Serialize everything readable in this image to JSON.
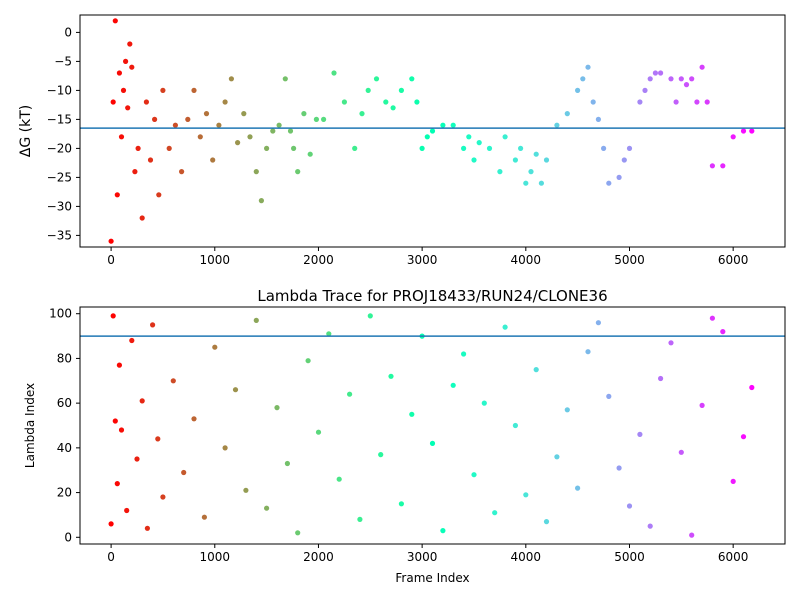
{
  "chart_data": [
    {
      "type": "scatter",
      "title": "",
      "xlabel": "",
      "ylabel": "ΔG (kT)",
      "xlim": [
        -300,
        6500
      ],
      "ylim": [
        -37,
        3
      ],
      "xticks": [
        0,
        1000,
        2000,
        3000,
        4000,
        5000,
        6000
      ],
      "yticks": [
        0,
        -5,
        -10,
        -15,
        -20,
        -25,
        -30,
        -35
      ],
      "hline": -16.5,
      "colormap": "rainbow (red at frame 0 to purple at last frame)",
      "frames": 6200,
      "series": [
        {
          "name": "",
          "x": [
            0,
            20,
            40,
            60,
            80,
            100,
            120,
            140,
            160,
            180,
            200,
            230,
            260,
            300,
            340,
            380,
            420,
            460,
            500,
            560,
            620,
            680,
            740,
            800,
            860,
            920,
            980,
            1040,
            1100,
            1160,
            1220,
            1280,
            1340,
            1400,
            1450,
            1500,
            1560,
            1620,
            1680,
            1730,
            1760,
            1800,
            1860,
            1920,
            1980,
            2050,
            2150,
            2250,
            2350,
            2420,
            2480,
            2560,
            2650,
            2720,
            2800,
            2900,
            2950,
            3000,
            3050,
            3100,
            3200,
            3300,
            3400,
            3450,
            3500,
            3550,
            3650,
            3750,
            3800,
            3900,
            3950,
            4000,
            4050,
            4100,
            4150,
            4200,
            4300,
            4400,
            4500,
            4550,
            4600,
            4650,
            4700,
            4750,
            4800,
            4900,
            4950,
            5000,
            5100,
            5150,
            5200,
            5250,
            5300,
            5400,
            5450,
            5500,
            5550,
            5600,
            5650,
            5700,
            5750,
            5800,
            5900,
            6000,
            6100,
            6180
          ],
          "y": [
            -36,
            -12,
            2,
            -28,
            -7,
            -18,
            -10,
            -5,
            -13,
            -2,
            -6,
            -24,
            -20,
            -32,
            -12,
            -22,
            -15,
            -28,
            -10,
            -20,
            -16,
            -24,
            -15,
            -10,
            -18,
            -14,
            -22,
            -16,
            -12,
            -8,
            -19,
            -14,
            -18,
            -24,
            -29,
            -20,
            -17,
            -16,
            -8,
            -17,
            -20,
            -24,
            -14,
            -21,
            -15,
            -15,
            -7,
            -12,
            -20,
            -14,
            -10,
            -8,
            -12,
            -13,
            -10,
            -8,
            -12,
            -20,
            -18,
            -17,
            -16,
            -16,
            -20,
            -18,
            -22,
            -19,
            -20,
            -24,
            -18,
            -22,
            -20,
            -26,
            -24,
            -21,
            -26,
            -22,
            -16,
            -14,
            -10,
            -8,
            -6,
            -12,
            -15,
            -20,
            -26,
            -25,
            -22,
            -20,
            -12,
            -10,
            -8,
            -7,
            -7,
            -8,
            -12,
            -8,
            -9,
            -8,
            -12,
            -6,
            -12,
            -23,
            -23,
            -18,
            -17,
            -17
          ]
        }
      ]
    },
    {
      "type": "scatter",
      "title": "Lambda Trace for PROJ18433/RUN24/CLONE36",
      "xlabel": "Frame Index",
      "ylabel": "Lambda Index",
      "xlim": [
        -300,
        6500
      ],
      "ylim": [
        -3,
        103
      ],
      "xticks": [
        0,
        1000,
        2000,
        3000,
        4000,
        5000,
        6000
      ],
      "yticks": [
        0,
        20,
        40,
        60,
        80,
        100
      ],
      "hline": 90,
      "colormap": "rainbow (red at frame 0 to purple at last frame)",
      "frames": 6200,
      "series": [
        {
          "name": "",
          "x": [
            0,
            20,
            40,
            60,
            80,
            100,
            150,
            200,
            250,
            300,
            350,
            400,
            450,
            500,
            600,
            700,
            800,
            900,
            1000,
            1100,
            1200,
            1300,
            1400,
            1500,
            1600,
            1700,
            1800,
            1900,
            2000,
            2100,
            2200,
            2300,
            2400,
            2500,
            2600,
            2700,
            2800,
            2900,
            3000,
            3100,
            3200,
            3300,
            3400,
            3500,
            3600,
            3700,
            3800,
            3900,
            4000,
            4100,
            4200,
            4300,
            4400,
            4500,
            4600,
            4700,
            4800,
            4900,
            5000,
            5100,
            5200,
            5300,
            5400,
            5500,
            5600,
            5700,
            5800,
            5900,
            6000,
            6100,
            6180
          ],
          "y": [
            6,
            99,
            52,
            24,
            77,
            48,
            12,
            88,
            35,
            61,
            4,
            95,
            44,
            18,
            70,
            29,
            53,
            9,
            85,
            40,
            66,
            21,
            97,
            13,
            58,
            33,
            2,
            79,
            47,
            91,
            26,
            64,
            8,
            99,
            37,
            72,
            15,
            55,
            90,
            42,
            3,
            68,
            82,
            28,
            60,
            11,
            94,
            50,
            19,
            75,
            7,
            36,
            57,
            22,
            83,
            96,
            63,
            31,
            14,
            46,
            5,
            71,
            87,
            38,
            1,
            59,
            98,
            92,
            25,
            45,
            67
          ]
        }
      ]
    }
  ]
}
